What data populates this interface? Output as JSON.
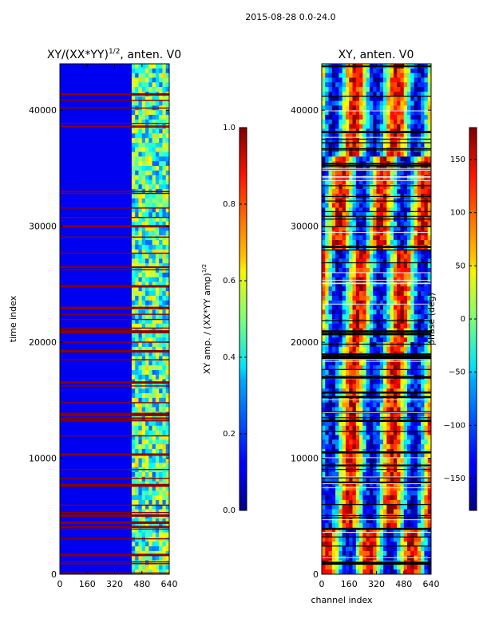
{
  "suptitle": "2015-08-28 0.0-24.0",
  "chart_data": [
    {
      "type": "heatmap",
      "title_main": "XY/(XX*YY)",
      "title_exp": "1/2",
      "title_rest": ", anten. V0",
      "ylabel": "time index",
      "xlabel": "",
      "xlim": [
        0,
        640
      ],
      "ylim": [
        0,
        44000
      ],
      "xticks": [
        "0",
        "160",
        "320",
        "480",
        "640"
      ],
      "yticks": [
        "0",
        "10000",
        "20000",
        "30000",
        "40000"
      ],
      "colorbar": {
        "label_main": "XY amp. / (XX*YY amp)",
        "label_exp": "1/2",
        "range": [
          0.0,
          1.0
        ],
        "ticks": [
          "0.0",
          "0.2",
          "0.4",
          "0.6",
          "0.8",
          "1.0"
        ]
      },
      "colormap": "jet"
    },
    {
      "type": "heatmap",
      "title": "XY, anten. V0",
      "ylabel": "",
      "xlabel": "channel index",
      "xlim": [
        0,
        640
      ],
      "ylim": [
        0,
        44000
      ],
      "xticks": [
        "0",
        "160",
        "320",
        "480",
        "640"
      ],
      "yticks": [
        "0",
        "10000",
        "20000",
        "30000",
        "40000"
      ],
      "colorbar": {
        "label": "phase (deg)",
        "range": [
          -180,
          180
        ],
        "ticks": [
          "−150",
          "−100",
          "−50",
          "0",
          "50",
          "100",
          "150"
        ]
      },
      "colormap": "jet"
    }
  ]
}
